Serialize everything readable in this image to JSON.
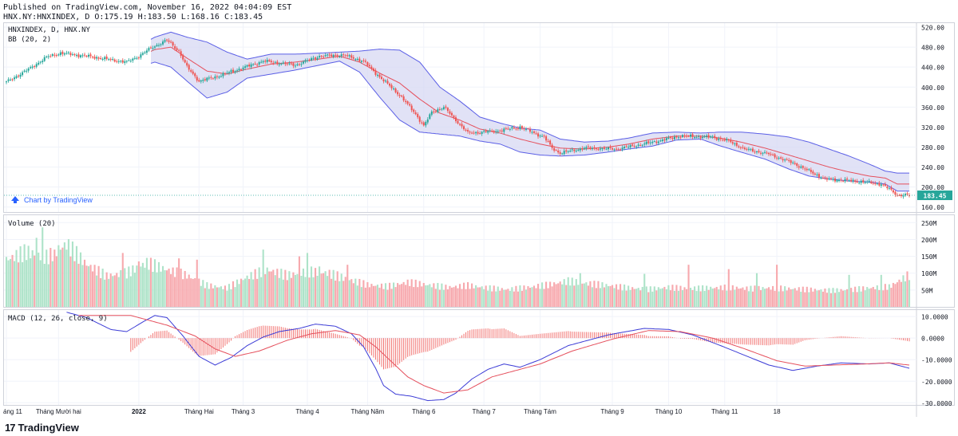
{
  "header": {
    "published": "Published on TradingView.com, November 16, 2022 04:04:09 EST",
    "symbol_line": "HNX.NY:HNXINDEX, D O:175.19 H:183.50 L:168.16 C:183.45"
  },
  "footer": {
    "brand": "TradingView",
    "logo": "17"
  },
  "colors": {
    "up": "#26a69a",
    "down": "#ef5350",
    "volUp": "#aee3c9",
    "volDown": "#f7a9ae",
    "bbBand": "#5b5fe6",
    "bbMid": "#e5505d",
    "bbFill": "#d7d8f3",
    "macd": "#3b3bd6",
    "signal": "#e5505d"
  },
  "chart_data": [
    {
      "type": "candlestick",
      "pane": "price",
      "symbol_label": "HNXINDEX, D, HNX.NY",
      "indicator_label": "BB (20, 2)",
      "watermark": "Chart by TradingView",
      "last_price_label": "183.45",
      "last_price": 183.45,
      "ylim": [
        150,
        528
      ],
      "y_ticks": [
        160,
        200,
        240,
        280,
        320,
        360,
        400,
        440,
        480,
        520
      ],
      "y_tick_labels": [
        "160.00",
        "200.00",
        "240.00",
        "280.00",
        "320.00",
        "360.00",
        "400.00",
        "440.00",
        "480.00",
        "520.00"
      ],
      "close_anchors": [
        [
          0,
          410
        ],
        [
          12,
          438
        ],
        [
          20,
          460
        ],
        [
          27,
          468
        ],
        [
          40,
          462
        ],
        [
          50,
          456
        ],
        [
          60,
          450
        ],
        [
          66,
          462
        ],
        [
          72,
          478
        ],
        [
          80,
          494
        ],
        [
          86,
          472
        ],
        [
          90,
          440
        ],
        [
          96,
          412
        ],
        [
          104,
          420
        ],
        [
          116,
          436
        ],
        [
          128,
          452
        ],
        [
          144,
          444
        ],
        [
          156,
          462
        ],
        [
          168,
          464
        ],
        [
          178,
          452
        ],
        [
          184,
          428
        ],
        [
          196,
          384
        ],
        [
          204,
          346
        ],
        [
          208,
          322
        ],
        [
          212,
          350
        ],
        [
          218,
          360
        ],
        [
          224,
          334
        ],
        [
          230,
          308
        ],
        [
          244,
          312
        ],
        [
          256,
          320
        ],
        [
          268,
          300
        ],
        [
          272,
          278
        ],
        [
          276,
          268
        ],
        [
          288,
          278
        ],
        [
          304,
          276
        ],
        [
          320,
          288
        ],
        [
          336,
          302
        ],
        [
          352,
          300
        ],
        [
          360,
          292
        ],
        [
          368,
          276
        ],
        [
          380,
          266
        ],
        [
          392,
          248
        ],
        [
          400,
          232
        ],
        [
          408,
          216
        ],
        [
          416,
          214
        ],
        [
          428,
          210
        ],
        [
          436,
          206
        ],
        [
          440,
          196
        ],
        [
          444,
          184
        ],
        [
          450,
          183.45
        ]
      ],
      "bb_anchors": [
        [
          0,
          438,
          468,
          408
        ],
        [
          18,
          463,
          473,
          453
        ],
        [
          28,
          452,
          472,
          432
        ],
        [
          40,
          446,
          466,
          426
        ],
        [
          52,
          450,
          462,
          438
        ],
        [
          64,
          458,
          478,
          438
        ],
        [
          74,
          475,
          500,
          450
        ],
        [
          82,
          480,
          510,
          440
        ],
        [
          90,
          458,
          500,
          412
        ],
        [
          100,
          432,
          490,
          378
        ],
        [
          110,
          426,
          470,
          390
        ],
        [
          120,
          436,
          456,
          418
        ],
        [
          132,
          446,
          466,
          426
        ],
        [
          144,
          450,
          466,
          434
        ],
        [
          156,
          456,
          468,
          444
        ],
        [
          166,
          462,
          470,
          452
        ],
        [
          176,
          450,
          472,
          430
        ],
        [
          186,
          428,
          476,
          380
        ],
        [
          196,
          408,
          474,
          334
        ],
        [
          206,
          376,
          450,
          310
        ],
        [
          216,
          348,
          400,
          306
        ],
        [
          226,
          334,
          372,
          302
        ],
        [
          236,
          316,
          340,
          292
        ],
        [
          246,
          308,
          328,
          286
        ],
        [
          256,
          296,
          318,
          270
        ],
        [
          266,
          286,
          314,
          264
        ],
        [
          276,
          278,
          296,
          262
        ],
        [
          288,
          276,
          290,
          264
        ],
        [
          300,
          280,
          292,
          270
        ],
        [
          310,
          286,
          298,
          276
        ],
        [
          322,
          296,
          308,
          282
        ],
        [
          334,
          302,
          310,
          294
        ],
        [
          346,
          302,
          308,
          296
        ],
        [
          356,
          298,
          310,
          282
        ],
        [
          366,
          290,
          310,
          270
        ],
        [
          378,
          278,
          306,
          256
        ],
        [
          390,
          264,
          300,
          236
        ],
        [
          400,
          252,
          290,
          222
        ],
        [
          410,
          240,
          276,
          216
        ],
        [
          420,
          230,
          262,
          212
        ],
        [
          430,
          222,
          246,
          210
        ],
        [
          438,
          218,
          232,
          206
        ],
        [
          444,
          206,
          228,
          192
        ]
      ],
      "x_tick_labels": [
        "áng 11",
        "Tháng Mười hai",
        "2022",
        "Tháng Hai",
        "Tháng 3",
        "Tháng 4",
        "Tháng Năm",
        "Tháng 6",
        "Tháng 7",
        "Tháng Tám",
        "Tháng 9",
        "Tháng 10",
        "Tháng 11",
        "18"
      ],
      "x_tick_bars": [
        0,
        26,
        66,
        96,
        118,
        150,
        180,
        208,
        238,
        266,
        302,
        330,
        358,
        384
      ],
      "bar_count": 451
    },
    {
      "type": "bar",
      "pane": "volume",
      "indicator_label": "Volume (20)",
      "ylim": [
        0,
        272
      ],
      "y_ticks": [
        50,
        100,
        150,
        200,
        250
      ],
      "y_tick_labels": [
        "50M",
        "100M",
        "150M",
        "200M",
        "250M"
      ],
      "units": "M",
      "level_anchors": [
        [
          0,
          150
        ],
        [
          10,
          175
        ],
        [
          20,
          158
        ],
        [
          30,
          200
        ],
        [
          40,
          135
        ],
        [
          50,
          98
        ],
        [
          60,
          108
        ],
        [
          70,
          140
        ],
        [
          80,
          118
        ],
        [
          90,
          100
        ],
        [
          100,
          68
        ],
        [
          110,
          60
        ],
        [
          120,
          95
        ],
        [
          130,
          118
        ],
        [
          140,
          100
        ],
        [
          150,
          112
        ],
        [
          160,
          108
        ],
        [
          170,
          88
        ],
        [
          180,
          70
        ],
        [
          190,
          65
        ],
        [
          200,
          78
        ],
        [
          210,
          70
        ],
        [
          220,
          62
        ],
        [
          230,
          68
        ],
        [
          240,
          60
        ],
        [
          250,
          55
        ],
        [
          260,
          62
        ],
        [
          270,
          70
        ],
        [
          280,
          82
        ],
        [
          290,
          74
        ],
        [
          300,
          68
        ],
        [
          310,
          60
        ],
        [
          320,
          56
        ],
        [
          330,
          62
        ],
        [
          340,
          58
        ],
        [
          350,
          60
        ],
        [
          360,
          62
        ],
        [
          370,
          58
        ],
        [
          380,
          60
        ],
        [
          390,
          58
        ],
        [
          400,
          55
        ],
        [
          410,
          52
        ],
        [
          420,
          54
        ],
        [
          430,
          60
        ],
        [
          440,
          64
        ],
        [
          450,
          102
        ]
      ],
      "spike_bars": [
        15,
        18,
        22,
        24,
        26,
        58,
        66,
        86,
        95,
        128,
        146,
        150,
        156,
        170,
        286,
        318,
        340,
        360,
        374,
        384,
        420,
        436
      ],
      "spike_values": [
        205,
        236,
        175,
        170,
        183,
        160,
        135,
        144,
        140,
        170,
        150,
        160,
        120,
        125,
        100,
        98,
        125,
        112,
        100,
        125,
        95,
        95
      ]
    },
    {
      "type": "line",
      "pane": "macd",
      "indicator_label": "MACD (12, 26, close, 9)",
      "ylim": [
        -31,
        13
      ],
      "y_ticks": [
        10,
        0,
        -10,
        -20,
        -30
      ],
      "y_tick_labels": [
        "10.0000",
        "0.0000",
        "-10.0000",
        "-20.0000",
        "-30.0000"
      ],
      "macd_anchors": [
        [
          30,
          12.0
        ],
        [
          40,
          9.5
        ],
        [
          52,
          4.0
        ],
        [
          60,
          3.0
        ],
        [
          68,
          7.5
        ],
        [
          74,
          10.5
        ],
        [
          80,
          9.5
        ],
        [
          88,
          1.0
        ],
        [
          96,
          -8.5
        ],
        [
          104,
          -12.5
        ],
        [
          112,
          -9.0
        ],
        [
          120,
          -3.5
        ],
        [
          128,
          0.5
        ],
        [
          136,
          3.0
        ],
        [
          146,
          4.5
        ],
        [
          154,
          6.5
        ],
        [
          164,
          5.5
        ],
        [
          172,
          2.0
        ],
        [
          178,
          -4.0
        ],
        [
          184,
          -14.0
        ],
        [
          188,
          -22.0
        ],
        [
          194,
          -26.0
        ],
        [
          202,
          -27.0
        ],
        [
          210,
          -29.0
        ],
        [
          218,
          -28.5
        ],
        [
          224,
          -25.5
        ],
        [
          232,
          -19.0
        ],
        [
          240,
          -14.5
        ],
        [
          248,
          -12.0
        ],
        [
          256,
          -13.5
        ],
        [
          266,
          -10.0
        ],
        [
          280,
          -3.5
        ],
        [
          300,
          1.5
        ],
        [
          318,
          4.5
        ],
        [
          330,
          4.0
        ],
        [
          342,
          1.5
        ],
        [
          356,
          -3.5
        ],
        [
          368,
          -8.0
        ],
        [
          380,
          -12.5
        ],
        [
          392,
          -15.0
        ],
        [
          404,
          -13.0
        ],
        [
          416,
          -11.5
        ],
        [
          430,
          -12.0
        ],
        [
          440,
          -11.5
        ],
        [
          450,
          -14.0
        ]
      ],
      "signal_anchors": [
        [
          62,
          10.5
        ],
        [
          80,
          6.0
        ],
        [
          94,
          1.0
        ],
        [
          104,
          -5.0
        ],
        [
          114,
          -8.5
        ],
        [
          126,
          -6.0
        ],
        [
          140,
          -1.0
        ],
        [
          152,
          2.0
        ],
        [
          164,
          3.5
        ],
        [
          176,
          1.5
        ],
        [
          184,
          -4.0
        ],
        [
          192,
          -11.0
        ],
        [
          200,
          -18.0
        ],
        [
          208,
          -22.0
        ],
        [
          218,
          -25.5
        ],
        [
          230,
          -24.0
        ],
        [
          242,
          -18.0
        ],
        [
          254,
          -15.0
        ],
        [
          266,
          -12.0
        ],
        [
          282,
          -6.0
        ],
        [
          302,
          -0.5
        ],
        [
          320,
          3.5
        ],
        [
          336,
          3.0
        ],
        [
          352,
          0.0
        ],
        [
          368,
          -5.0
        ],
        [
          384,
          -10.5
        ],
        [
          398,
          -13.0
        ],
        [
          412,
          -12.5
        ],
        [
          428,
          -12.0
        ],
        [
          440,
          -11.5
        ],
        [
          450,
          -12.5
        ]
      ]
    }
  ]
}
